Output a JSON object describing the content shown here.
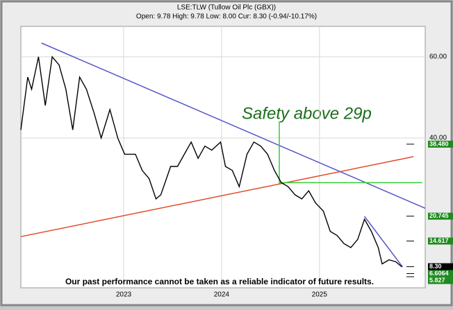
{
  "chart_data": {
    "type": "line",
    "title": "LSE:TLW (Tullow Oil Plc (GBX))",
    "subtitle": "Open: 9.78 High: 9.78 Low: 8.00 Cur: 8.30 (-0.94/-10.17%)",
    "annotation": "Safety above 29p",
    "footer": "Our past performance cannot be taken as a reliable indicator of future results.",
    "color": "#000000",
    "x": [
      2021.95,
      2022.02,
      2022.06,
      2022.13,
      2022.2,
      2022.27,
      2022.34,
      2022.41,
      2022.48,
      2022.55,
      2022.62,
      2022.7,
      2022.77,
      2022.86,
      2022.94,
      2023.01,
      2023.12,
      2023.19,
      2023.26,
      2023.33,
      2023.38,
      2023.48,
      2023.55,
      2023.62,
      2023.69,
      2023.76,
      2023.83,
      2023.9,
      2023.99,
      2024.04,
      2024.11,
      2024.18,
      2024.26,
      2024.33,
      2024.4,
      2024.47,
      2024.54,
      2024.61,
      2024.68,
      2024.75,
      2024.82,
      2024.89,
      2024.96,
      2025.04,
      2025.11,
      2025.18,
      2025.25,
      2025.32,
      2025.39,
      2025.46,
      2025.53,
      2025.6,
      2025.64,
      2025.71,
      2025.78,
      2025.84
    ],
    "values": [
      42,
      55,
      52,
      60,
      48,
      60,
      58,
      52,
      42,
      55,
      52,
      46,
      40,
      47,
      40,
      36,
      36,
      32,
      30,
      25,
      26,
      33,
      33,
      36,
      39,
      35,
      38,
      37,
      39,
      33,
      32,
      28,
      36,
      39,
      38,
      36,
      32,
      29,
      28,
      26,
      25,
      27,
      24,
      22,
      17,
      16,
      14,
      13,
      15,
      20,
      17,
      13,
      9,
      10,
      9.5,
      8.3
    ],
    "xlim": [
      2021.95,
      2026.08
    ],
    "ylim": [
      3.1,
      67.5
    ],
    "xticks": [
      2023,
      2024,
      2025
    ],
    "yticks": [
      {
        "value": 60,
        "label": "60.00"
      },
      {
        "value": 40,
        "label": "40.00"
      }
    ],
    "grid": true,
    "lines": [
      {
        "color": "#5555cc",
        "x": [
          2022.16,
          2026.08
        ],
        "values": [
          63.4,
          22.7
        ]
      },
      {
        "color": "#e04a2a",
        "x": [
          2021.95,
          2025.96
        ],
        "values": [
          15.7,
          35.4
        ]
      },
      {
        "color": "#33cc33",
        "x": [
          2024.59,
          2024.59
        ],
        "values": [
          44.1,
          28.7
        ]
      },
      {
        "color": "#33cc33",
        "x": [
          2024.59,
          2026.05
        ],
        "values": [
          29,
          29
        ]
      },
      {
        "color": "#5555cc",
        "x": [
          2025.46,
          2025.85
        ],
        "values": [
          20.7,
          8.2
        ]
      }
    ],
    "levels": [
      {
        "value": 38.48,
        "label": "38.480",
        "color": "#1f8a1f"
      },
      {
        "value": 20.745,
        "label": "20.745",
        "color": "#1f8a1f"
      },
      {
        "value": 14.617,
        "label": "14.617",
        "color": "#1f8a1f"
      },
      {
        "value": 8.3,
        "label": "8.30",
        "color": "#000000"
      },
      {
        "value": 6.6064,
        "label": "6.6064",
        "color": "#1f8a1f"
      },
      {
        "value": 5.827,
        "label": "5.827",
        "color": "#1f8a1f"
      }
    ]
  }
}
